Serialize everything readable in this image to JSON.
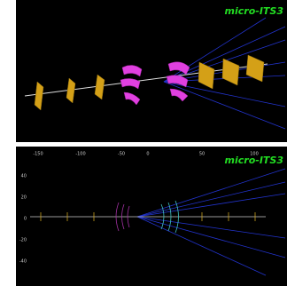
{
  "top_panel": {
    "label": "micro-ITS3"
  },
  "bottom_panel": {
    "label": "micro-ITS3",
    "x_ticks": [
      "-150",
      "-100",
      "-50",
      "0",
      "50",
      "100"
    ],
    "y_ticks": [
      "40",
      "20",
      "0",
      "-20",
      "-40"
    ]
  }
}
